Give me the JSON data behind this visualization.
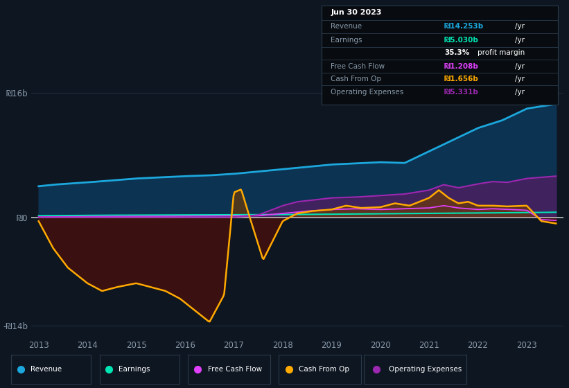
{
  "background_color": "#0e1621",
  "plot_bg_color": "#0e1621",
  "revenue_color": "#1ca8dd",
  "earnings_color": "#00e5b4",
  "free_cash_flow_color": "#e040fb",
  "cash_from_op_color": "#ffaa00",
  "operating_expenses_color": "#9c27b0",
  "revenue_fill": "#1a3f5c",
  "op_exp_fill": "#5a3a7a",
  "cash_neg_fill": "#4a1a1a",
  "cash_pos_fill": "#7a4a10",
  "info_bg": "#080c10",
  "grid_color": "#1e2d3d",
  "tick_color": "#8899aa",
  "white_line": "#cccccc",
  "legend_items": [
    {
      "label": "Revenue",
      "color": "#1ca8dd"
    },
    {
      "label": "Earnings",
      "color": "#00e5b4"
    },
    {
      "label": "Free Cash Flow",
      "color": "#e040fb"
    },
    {
      "label": "Cash From Op",
      "color": "#ffaa00"
    },
    {
      "label": "Operating Expenses",
      "color": "#9c27b0"
    }
  ]
}
